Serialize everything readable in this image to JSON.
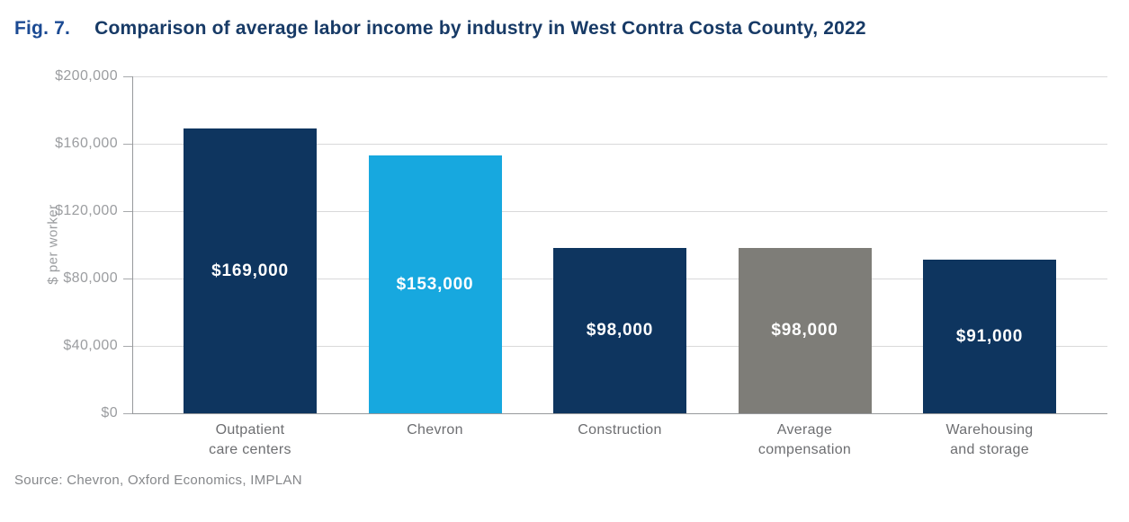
{
  "figure": {
    "fig_label": "Fig. 7.",
    "title": "Comparison of average labor income by industry in West Contra Costa County, 2022"
  },
  "source_note": "Source: Chevron, Oxford Economics, IMPLAN",
  "colors": {
    "navy_bar": "#0E355F",
    "chevron_blue_bar": "#17A8DF",
    "gray_bar": "#7E7D78",
    "gridline": "#D9D9DA",
    "axis": "#97999C",
    "tick_label": "#9B9DA0",
    "category_label": "#6D6E71",
    "value_label": "#FFFFFF",
    "fig_label": "#1B4A93",
    "title": "#173A66",
    "source": "#85878A"
  },
  "chart_data": {
    "type": "bar",
    "title": "Comparison of average labor income by industry in West Contra Costa County, 2022",
    "categories": [
      "Outpatient\ncare centers",
      "Chevron",
      "Construction",
      "Average\ncompensation",
      "Warehousing\nand storage"
    ],
    "values": [
      169000,
      153000,
      98000,
      98000,
      91000
    ],
    "value_labels": [
      "$169,000",
      "$153,000",
      "$98,000",
      "$98,000",
      "$91,000"
    ],
    "bar_colors": [
      "#0E355F",
      "#17A8DF",
      "#0E355F",
      "#7E7D78",
      "#0E355F"
    ],
    "xlabel": "",
    "ylabel": "$ per worker",
    "ylim": [
      0,
      200000
    ],
    "ytick_step": 40000,
    "ytick_labels": [
      "$0",
      "$40,000",
      "$80,000",
      "$120,000",
      "$160,000",
      "$200,000"
    ],
    "grid": "horizontal",
    "legend": "none",
    "value_label_position": "centered-inside-bar"
  }
}
